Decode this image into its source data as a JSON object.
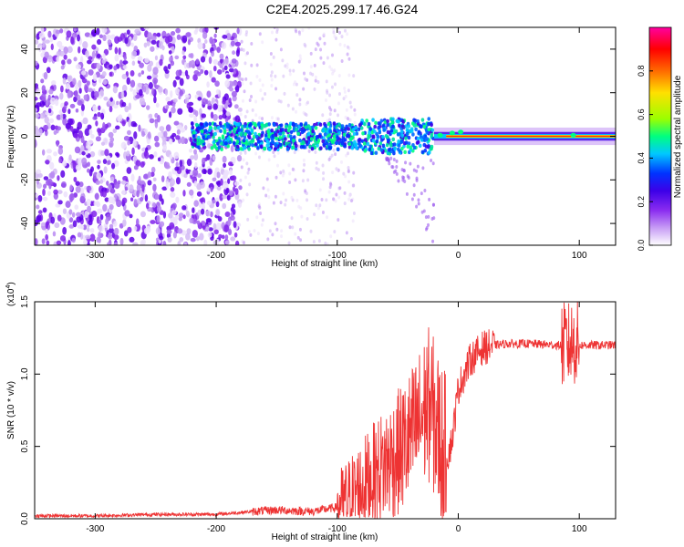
{
  "title": "C2E4.2025.299.17.46.G24",
  "chart_data": [
    {
      "type": "heatmap",
      "xlabel": "Height of straight line (km)",
      "ylabel": "Frequency (Hz)",
      "xlim": [
        -350,
        130
      ],
      "ylim": [
        -50,
        50
      ],
      "x_ticks": [
        -300,
        -200,
        -100,
        0,
        100
      ],
      "y_ticks": [
        -40,
        -20,
        0,
        20,
        40
      ],
      "colorbar": {
        "label": "Normalized spectral amplitude",
        "range": [
          0,
          1
        ],
        "ticks": [
          "0.0",
          "0.2",
          "0.4",
          "0.6",
          "0.8"
        ],
        "colors": [
          "#ffffff",
          "#c79cf5",
          "#8b2df0",
          "#3c00e8",
          "#0033ff",
          "#00c8ff",
          "#00ff80",
          "#9bff00",
          "#ffe000",
          "#ff6a00",
          "#ff0000",
          "#ff00a0"
        ]
      },
      "ridge": [
        {
          "x": -220,
          "center": 0,
          "spread": 6,
          "amp": 0.25
        },
        {
          "x": -150,
          "center": 0,
          "spread": 5,
          "amp": 0.35
        },
        {
          "x": -100,
          "center": 0,
          "spread": 5,
          "amp": 0.4
        },
        {
          "x": -60,
          "center": 0,
          "spread": 6,
          "amp": 0.45
        },
        {
          "x": -30,
          "center": 0,
          "spread": 4,
          "amp": 0.55
        },
        {
          "x": 0,
          "center": 1,
          "spread": 2,
          "amp": 0.8
        },
        {
          "x": 130,
          "center": 0,
          "spread": 1.5,
          "amp": 0.95
        }
      ]
    },
    {
      "type": "line",
      "xlabel": "Height of straight line (km)",
      "ylabel": "SNR (10 * v/v)",
      "y_multiplier": "(x10",
      "y_multiplier_exp": "4",
      "y_multiplier_close": ")",
      "xlim": [
        -350,
        130
      ],
      "ylim": [
        0,
        1.5
      ],
      "x_ticks": [
        -300,
        -200,
        -100,
        0,
        100
      ],
      "y_ticks": [
        "0.0",
        "0.5",
        "1.0",
        "1.5"
      ],
      "series": [
        {
          "color": "#ee3333",
          "x": [
            -350,
            -300,
            -250,
            -200,
            -170,
            -150,
            -120,
            -100,
            -90,
            -80,
            -70,
            -60,
            -50,
            -40,
            -30,
            -25,
            -20,
            -15,
            -10,
            -5,
            0,
            10,
            20,
            30,
            40,
            60,
            80,
            90,
            95,
            100,
            130
          ],
          "y": [
            0.02,
            0.02,
            0.03,
            0.03,
            0.05,
            0.06,
            0.05,
            0.08,
            0.15,
            0.22,
            0.3,
            0.38,
            0.45,
            0.55,
            0.7,
            0.8,
            0.7,
            0.55,
            0.4,
            0.55,
            0.9,
            1.1,
            1.18,
            1.2,
            1.21,
            1.21,
            1.2,
            1.2,
            1.22,
            1.2,
            1.2
          ]
        }
      ]
    }
  ]
}
